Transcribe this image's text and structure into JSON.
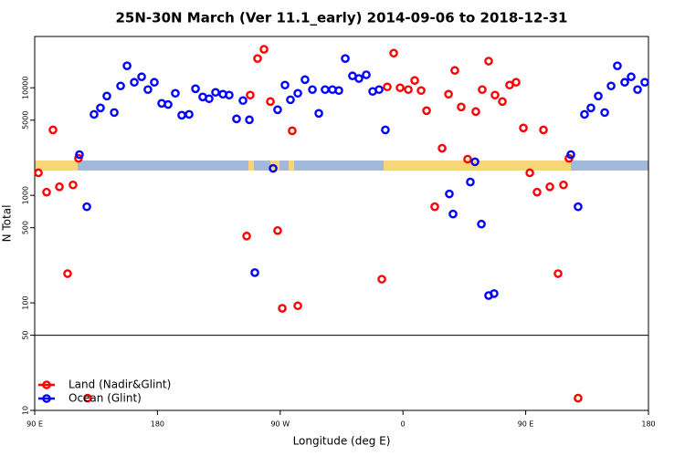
{
  "chart_data": {
    "type": "scatter",
    "title": "25N-30N March (Ver 11.1_early)   2014-09-06 to 2018-12-31",
    "x_label": "Longitude (deg E)",
    "y_label": "N Total",
    "log_y": true,
    "xlim": [
      90,
      540
    ],
    "ylim": [
      10,
      30000
    ],
    "xticks": [
      {
        "value": 90,
        "label": "90 E"
      },
      180,
      {
        "value": 270,
        "label": "90 W"
      },
      {
        "value": 360,
        "label": "0"
      },
      {
        "value": 450,
        "label": "90 E"
      },
      {
        "value": 540,
        "label": "180"
      }
    ],
    "yticks": [
      10,
      50,
      100,
      500,
      1000,
      5000,
      10000
    ],
    "hline": 50,
    "legend": "bottom-left",
    "series": [
      {
        "name": "Land (Nadir&Glint)",
        "color": "#ff0000",
        "x": [
          92.7,
          98.7,
          103.4,
          108.1,
          114.1,
          118.1,
          122.1,
          128.8,
          245.4,
          248.0,
          253.4,
          258.1,
          262.8,
          268.1,
          271.5,
          278.8,
          282.9,
          344.5,
          348.5,
          353.2,
          357.9,
          363.9,
          368.6,
          373.3,
          377.3,
          383.3,
          388.7,
          393.4,
          398.0,
          402.7,
          407.4,
          413.4,
          418.1,
          422.8,
          427.5,
          432.9,
          438.2,
          442.9,
          448.3,
          453.0,
          458.3,
          463.0,
          467.7,
          473.7,
          477.7,
          481.7,
          488.4
        ],
        "values": [
          1620,
          1070,
          4060,
          1200,
          187,
          1250,
          2210,
          13,
          418,
          8550,
          18700,
          22800,
          7450,
          470,
          89,
          3980,
          94,
          166,
          10200,
          21000,
          10000,
          9620,
          11700,
          9430,
          6130,
          783,
          2740,
          8720,
          14500,
          6630,
          2170,
          6010,
          9620,
          17700,
          8550,
          7450,
          10600,
          11250,
          4230,
          1620,
          1070,
          4060,
          1200,
          187,
          1250,
          2210,
          13
        ]
      },
      {
        "name": "Ocean (Glint)",
        "color": "#0000ff",
        "x": [
          122.8,
          128.2,
          133.5,
          138.2,
          142.9,
          148.3,
          153.0,
          157.7,
          163.0,
          168.4,
          173.0,
          177.7,
          183.1,
          187.8,
          193.1,
          197.8,
          203.2,
          207.9,
          213.2,
          217.9,
          222.6,
          228.0,
          232.6,
          238.0,
          242.7,
          247.4,
          251.4,
          264.8,
          268.1,
          273.5,
          277.5,
          282.9,
          288.2,
          293.6,
          298.3,
          302.9,
          308.3,
          313.0,
          317.7,
          323.0,
          327.7,
          333.1,
          337.8,
          342.5,
          347.1,
          394.0,
          396.7,
          409.4,
          412.8,
          417.5,
          422.8,
          426.8,
          483.1,
          488.4,
          493.1,
          497.8,
          503.2,
          507.9,
          512.6,
          517.2,
          522.6,
          527.3,
          532.0,
          537.3
        ],
        "values": [
          2390,
          783,
          5660,
          6500,
          8380,
          5890,
          10400,
          16000,
          11250,
          12650,
          9620,
          11250,
          7170,
          6990,
          8890,
          5560,
          5660,
          9800,
          8220,
          7910,
          9070,
          8720,
          8550,
          5140,
          7610,
          5040,
          191,
          1780,
          6250,
          10600,
          7740,
          8890,
          11900,
          9620,
          5780,
          9620,
          9620,
          9430,
          18700,
          12900,
          12200,
          13200,
          9250,
          9620,
          4060,
          1030,
          670,
          1330,
          2050,
          540,
          117,
          122,
          2390,
          783,
          5660,
          6500,
          8380,
          5890,
          10400,
          16000,
          11250,
          12650,
          9620,
          11250
        ]
      }
    ]
  }
}
